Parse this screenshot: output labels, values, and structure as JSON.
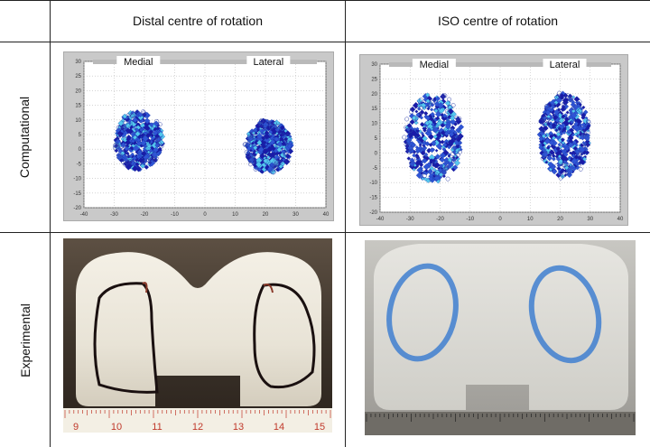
{
  "figure": {
    "columns": [
      "Distal centre of rotation",
      "ISO centre of rotation"
    ],
    "rows": [
      "Computational",
      "Experimental"
    ]
  },
  "colors": {
    "plot_background": "#ffffff",
    "panel_frame": "#c9c9c9",
    "marker_dark": "#1a1aa8",
    "marker_mid": "#2f55d6",
    "marker_light": "#55c8ee",
    "ink_black": "#1a1010",
    "ink_blue": "#3f7fd0"
  },
  "chart_data": [
    {
      "type": "scatter",
      "title": "",
      "region_labels": [
        "Medial",
        "Lateral"
      ],
      "xlim": [
        -40,
        40
      ],
      "ylim": [
        -20,
        30
      ],
      "xticks": [
        -40,
        -30,
        -20,
        -10,
        0,
        10,
        20,
        30,
        40
      ],
      "yticks": [
        -20,
        -15,
        -10,
        -5,
        0,
        5,
        10,
        15,
        20,
        25,
        30
      ],
      "grid": true,
      "regions": [
        {
          "name": "Medial",
          "cx": -22,
          "cy": 3,
          "rx": 8,
          "ry": 10
        },
        {
          "name": "Lateral",
          "cx": 21,
          "cy": 1,
          "rx": 7.5,
          "ry": 9
        }
      ]
    },
    {
      "type": "scatter",
      "title": "",
      "region_labels": [
        "Medial",
        "Lateral"
      ],
      "xlim": [
        -40,
        40
      ],
      "ylim": [
        -20,
        30
      ],
      "xticks": [
        -40,
        -30,
        -20,
        -10,
        0,
        10,
        20,
        30,
        40
      ],
      "yticks": [
        -20,
        -15,
        -10,
        -5,
        0,
        5,
        10,
        15,
        20,
        25,
        30
      ],
      "grid": true,
      "regions": [
        {
          "name": "Medial",
          "cx": -22,
          "cy": 5,
          "rx": 9.5,
          "ry": 15
        },
        {
          "name": "Lateral",
          "cx": 21.5,
          "cy": 6,
          "rx": 8.5,
          "ry": 14
        }
      ]
    }
  ],
  "rulers": [
    {
      "labels": [
        "9",
        "10",
        "11",
        "12",
        "13",
        "14",
        "15"
      ]
    },
    {
      "labels": []
    }
  ]
}
